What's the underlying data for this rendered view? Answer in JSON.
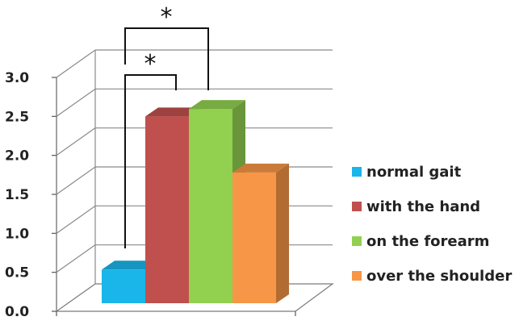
{
  "chart_data": {
    "type": "bar",
    "style": "3d-clustered",
    "title": "",
    "xlabel": "",
    "ylabel": "",
    "ylim": [
      0,
      3.0
    ],
    "yticks": [
      "0.0",
      "0.5",
      "1.0",
      "1.5",
      "2.0",
      "2.5",
      "3.0"
    ],
    "grid": true,
    "legend_position": "right",
    "series": [
      {
        "name": "normal gait",
        "value": 0.45,
        "color": "#1ab6ea"
      },
      {
        "name": "with the hand",
        "value": 2.5,
        "color": "#c0504d"
      },
      {
        "name": "on the forearm",
        "value": 2.6,
        "color": "#92d050"
      },
      {
        "name": "over the shoulder",
        "value": 1.75,
        "color": "#f79646"
      }
    ],
    "significance": [
      {
        "from": "normal gait",
        "to": "with the hand",
        "label": "*"
      },
      {
        "from": "normal gait",
        "to": "on the forearm",
        "label": "*"
      }
    ]
  }
}
